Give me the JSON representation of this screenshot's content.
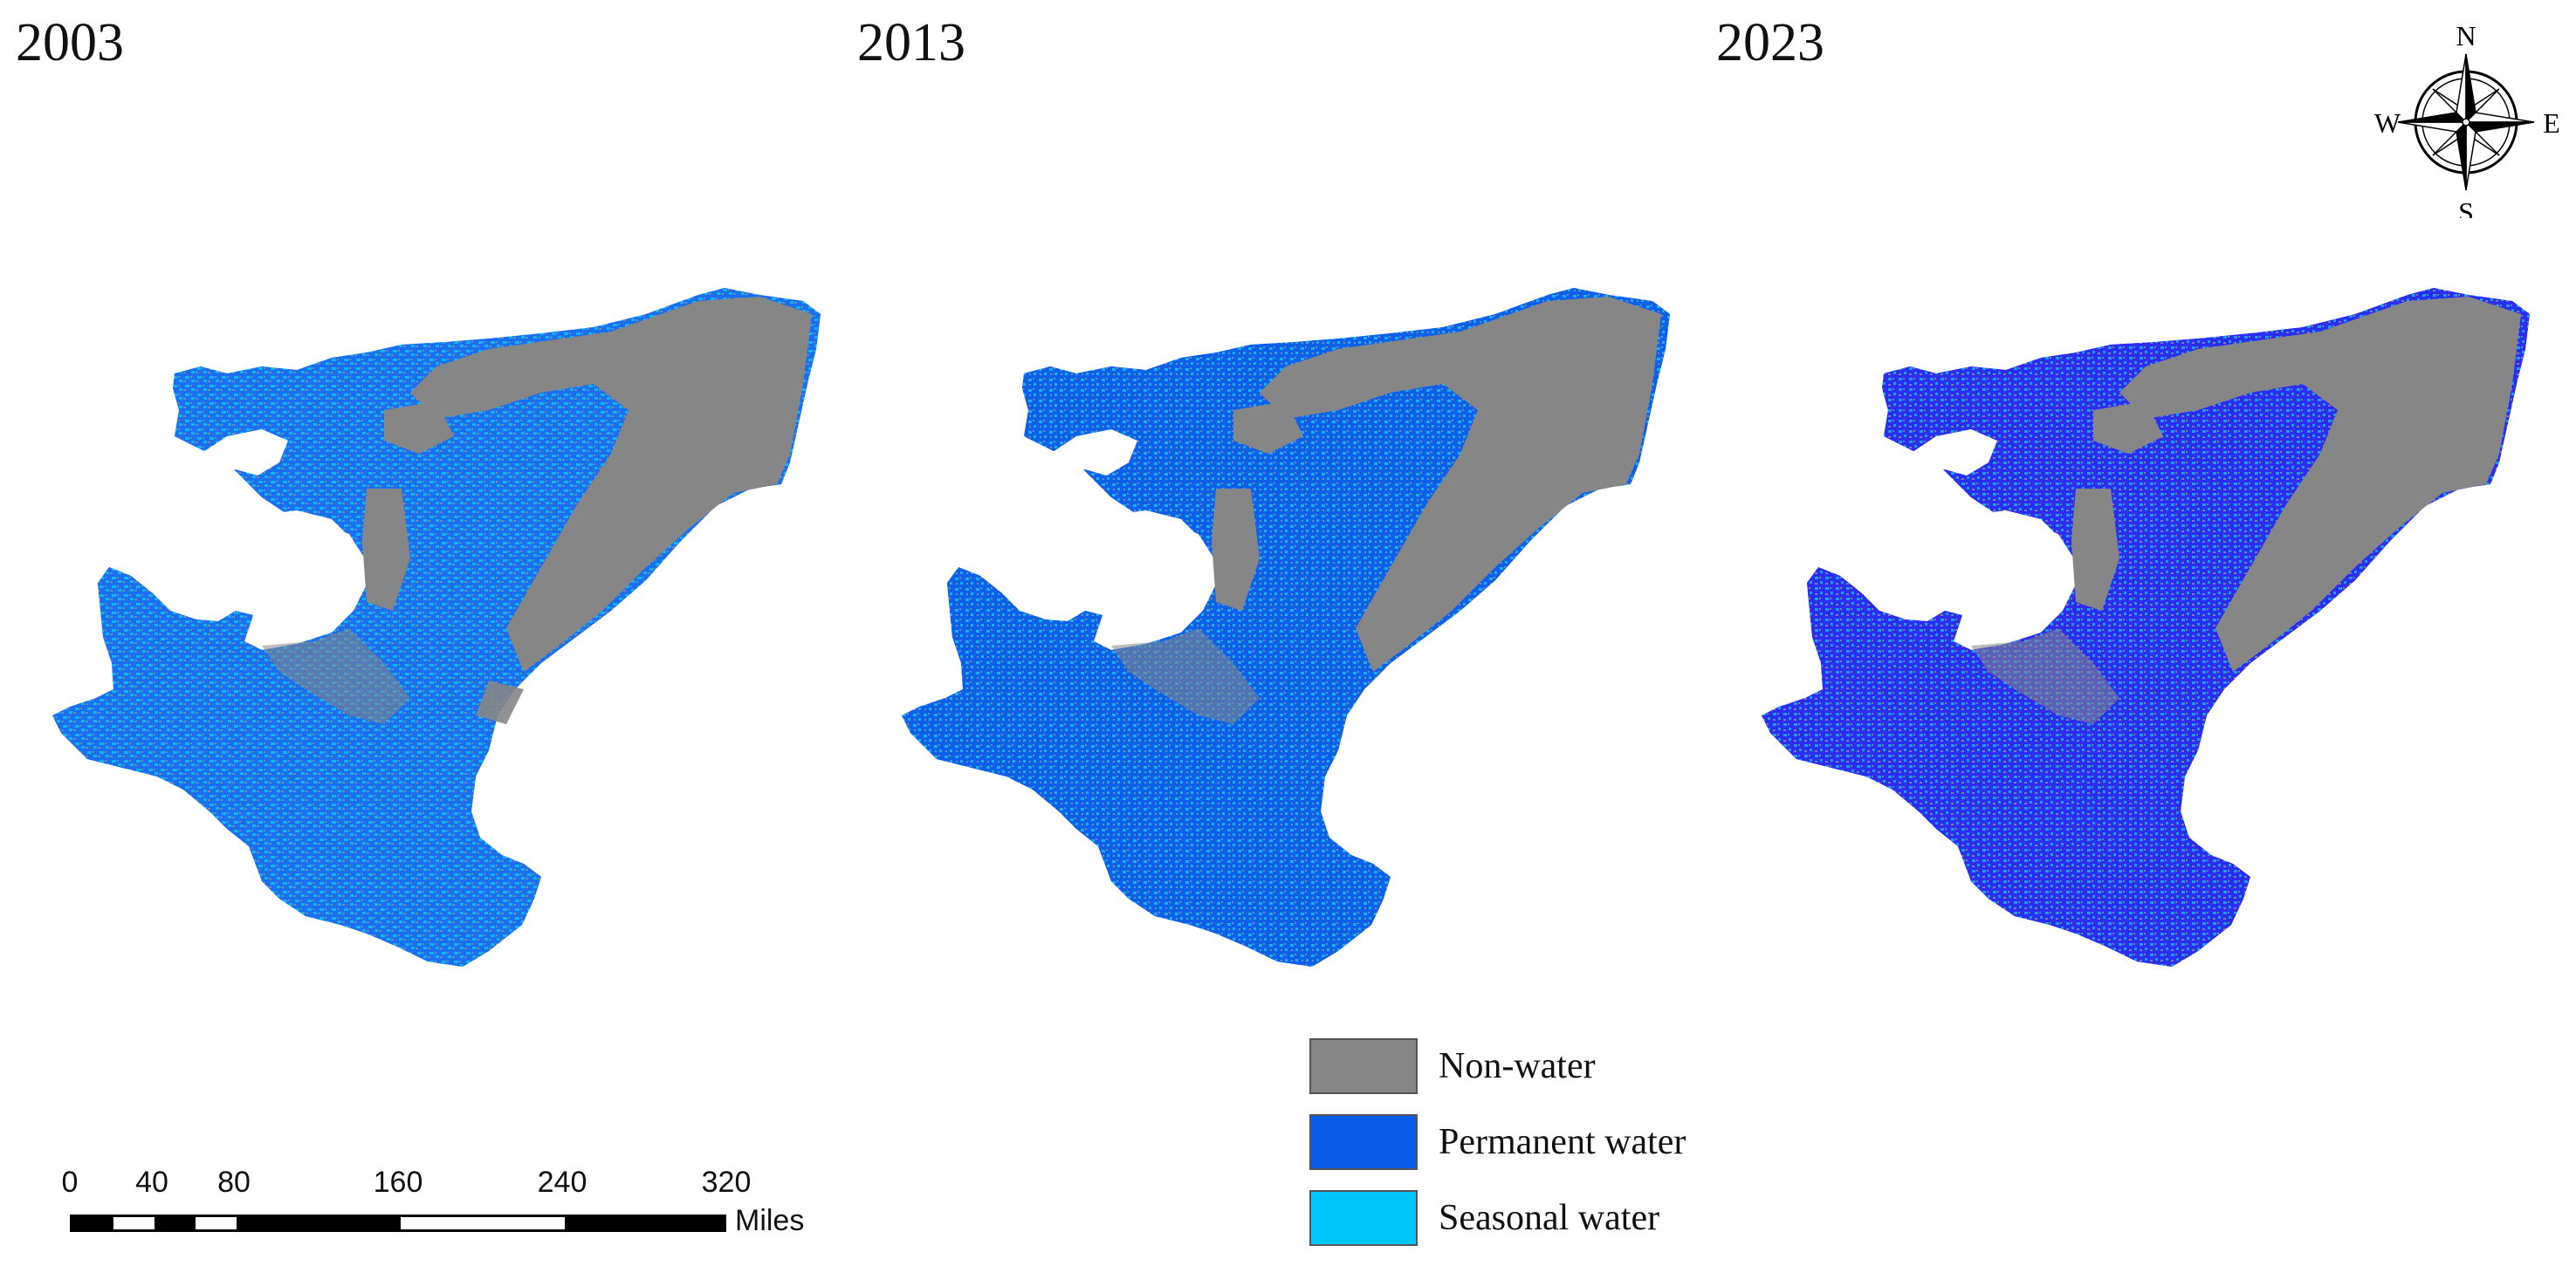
{
  "panels": [
    {
      "year": "2003"
    },
    {
      "year": "2013"
    },
    {
      "year": "2023"
    }
  ],
  "legend": {
    "items": [
      {
        "label": "Non-water",
        "color": "#868686"
      },
      {
        "label": "Permanent water",
        "color": "#0a5be8"
      },
      {
        "label": "Seasonal water",
        "color": "#00c5fb"
      }
    ]
  },
  "scale_bar": {
    "ticks": [
      "0",
      "40",
      "80",
      "160",
      "240",
      "320"
    ],
    "unit": "Miles"
  },
  "compass": {
    "n": "N",
    "e": "E",
    "s": "S",
    "w": "W"
  },
  "colors": {
    "non_water": "#868686",
    "permanent_water": "#0a5be8",
    "permanent_water_2023": "#2a2cf0",
    "seasonal_water": "#00c5fb"
  }
}
